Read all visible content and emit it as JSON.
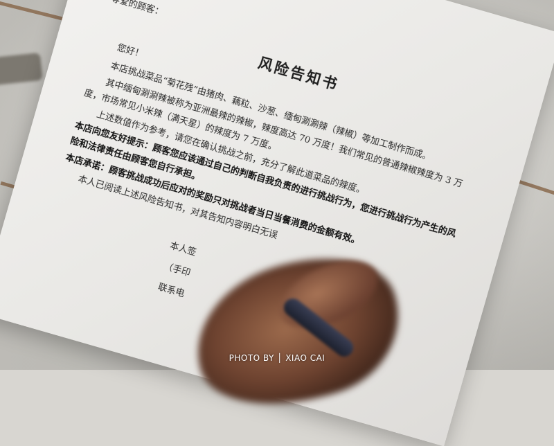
{
  "document": {
    "title": "风险告知书",
    "salutation": "尊爱的顾客：",
    "greeting": "您好！",
    "paragraphs": [
      "本店挑战菜品“菊花残”由猪肉、藕粒、沙葱、缅甸涮涮辣（辣椒）等加工制作而成。",
      "其中缅甸涮涮辣被称为亚洲最辣的辣椒，辣度高达 70 万度！我们常见的普通辣椒辣度为 3 万度，市场常见小米辣（满天星）的辣度为 7 万度。",
      "上述数值作为参考，请您在确认挑战之前，充分了解此道菜品的辣度。"
    ],
    "notices": [
      "本店向您友好提示：顾客您应该通过自己的判断自我负责的进行挑战行为，您进行挑战行为产生的风险和法律责任由顾客您自行承担。",
      "本店承诺：顾客挑战成功后应对的奖励只对挑战者当日当餐消费的金额有效。"
    ],
    "statement": "本人已阅读上述风险告知书，对其告知内容明白无误",
    "signature_label": "本人签",
    "handwritten_label": "（手印",
    "contact_label": "联系电"
  },
  "watermark": "PHOTO BY │ XIAO CAI",
  "colors": {
    "paper": "#f1f0ee",
    "grout": "#8a6a4e",
    "tile": "#dedcd6",
    "ink": "#2a2a2a"
  }
}
